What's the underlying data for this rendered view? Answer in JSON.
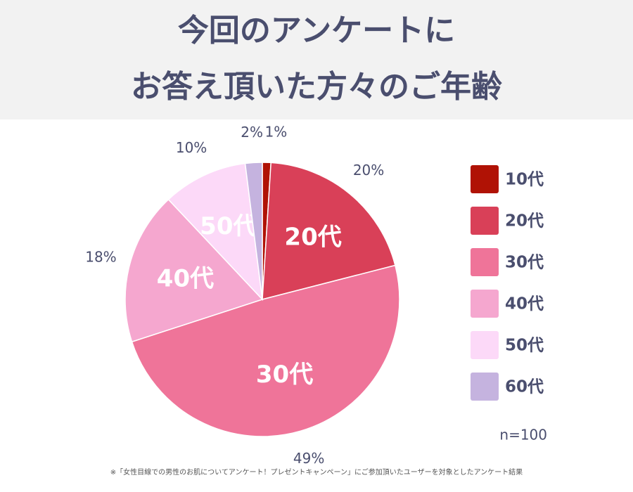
{
  "chart_data": {
    "type": "pie",
    "title": [
      "今回のアンケートに",
      "お答え頂いた方々のご年齢"
    ],
    "categories": [
      "10代",
      "20代",
      "30代",
      "40代",
      "50代",
      "60代"
    ],
    "values": [
      1,
      20,
      49,
      18,
      10,
      2
    ],
    "value_labels": [
      "1%",
      "20%",
      "49%",
      "18%",
      "10%",
      "2%"
    ],
    "colors": [
      "#b01205",
      "#d94058",
      "#ef7499",
      "#f5a7cf",
      "#fcd9f8",
      "#c5b3df"
    ],
    "legend": "right",
    "annotation": "n=100",
    "footnote": "※「女性目線での男性のお肌についてアンケート！プレゼントキャンペーン」にご参加頂いたユーザーを対象としたアンケート結果"
  }
}
